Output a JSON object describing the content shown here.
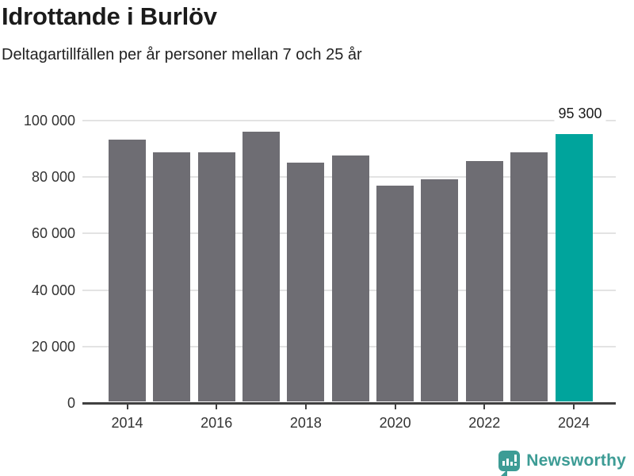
{
  "header": {
    "title": "Idrottande i Burlöv",
    "subtitle": "Deltagartillfällen per år personer mellan 7 och 25 år"
  },
  "chart_data": {
    "type": "bar",
    "title": "Idrottande i Burlöv",
    "subtitle": "Deltagartillfällen per år personer mellan 7 och 25 år",
    "categories": [
      "2014",
      "2015",
      "2016",
      "2017",
      "2018",
      "2019",
      "2020",
      "2021",
      "2022",
      "2023",
      "2024"
    ],
    "values": [
      93200,
      88800,
      88800,
      96100,
      85100,
      87600,
      77000,
      79200,
      85600,
      88900,
      95300
    ],
    "highlight_index": 10,
    "highlight_label": "95 300",
    "bar_color": "#6e6d73",
    "highlight_color": "#00a49c",
    "xlabel": "",
    "ylabel": "",
    "ylim": [
      0,
      100000
    ],
    "yticks": [
      0,
      20000,
      40000,
      60000,
      80000,
      100000
    ],
    "ytick_labels": [
      "0",
      "20 000",
      "40 000",
      "60 000",
      "80 000",
      "100 000"
    ],
    "xtick_labels": [
      "2014",
      "2016",
      "2018",
      "2020",
      "2022",
      "2024"
    ],
    "grid": "horizontal-only",
    "legend": "none",
    "colors": {
      "gridline": "#e3e3e3",
      "axis": "#404040",
      "tick_text": "#333333"
    }
  },
  "footer": {
    "brand": "Newsworthy",
    "brand_color": "#3d9c95",
    "logo_icon": "speech-bubble-bar-chart-icon"
  }
}
